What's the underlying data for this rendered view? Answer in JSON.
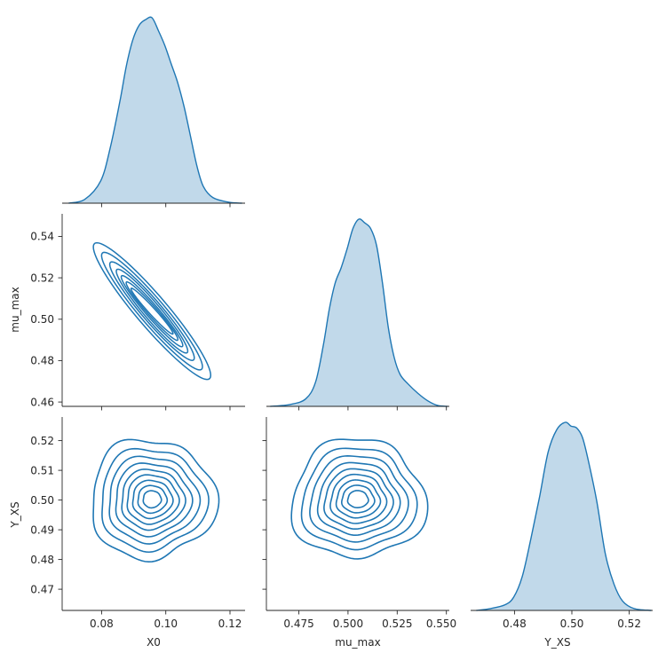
{
  "chart_data": {
    "type": "pairplot",
    "variables": [
      "X0",
      "mu_max",
      "Y_XS"
    ],
    "colors": {
      "line": "#1f77b4",
      "fill": "#1f77b4",
      "fill_alpha": 0.28,
      "axis": "#262626"
    },
    "axes": {
      "X0": {
        "label": "X0",
        "lim": [
          0.068,
          0.125
        ],
        "ticks": [
          0.08,
          0.1,
          0.12
        ],
        "tick_labels": [
          "0.08",
          "0.10",
          "0.12"
        ]
      },
      "mu_max": {
        "label": "mu_max",
        "lim": [
          0.458,
          0.551
        ],
        "ticks": [
          0.46,
          0.48,
          0.5,
          0.52,
          0.54
        ],
        "tick_labels": [
          "0.46",
          "0.48",
          "0.50",
          "0.52",
          "0.54"
        ],
        "x_ticks": [
          0.475,
          0.5,
          0.525,
          0.55
        ],
        "x_tick_labels": [
          "0.475",
          "0.500",
          "0.525",
          "0.550"
        ]
      },
      "Y_XS": {
        "label": "Y_XS",
        "lim": [
          0.463,
          0.5265
        ],
        "ticks": [
          0.47,
          0.48,
          0.49,
          0.5,
          0.51,
          0.52
        ],
        "tick_labels": [
          "0.47",
          "0.48",
          "0.49",
          "0.50",
          "0.51",
          "0.52"
        ],
        "x_ticks": [
          0.48,
          0.5,
          0.52
        ],
        "x_tick_labels": [
          "0.48",
          "0.50",
          "0.52"
        ]
      }
    },
    "diagonal_kde": [
      {
        "variable": "X0",
        "x": [
          0.07,
          0.075,
          0.08,
          0.083,
          0.086,
          0.088,
          0.09,
          0.092,
          0.094,
          0.096,
          0.098,
          0.1,
          0.102,
          0.104,
          0.106,
          0.108,
          0.11,
          0.112,
          0.115,
          0.12,
          0.124
        ],
        "density": [
          0.0,
          0.02,
          0.12,
          0.3,
          0.55,
          0.74,
          0.88,
          0.96,
          0.99,
          1.0,
          0.93,
          0.85,
          0.75,
          0.65,
          0.52,
          0.36,
          0.2,
          0.09,
          0.03,
          0.005,
          0.0
        ]
      },
      {
        "variable": "mu_max",
        "x": [
          0.46,
          0.47,
          0.478,
          0.483,
          0.487,
          0.49,
          0.493,
          0.496,
          0.499,
          0.502,
          0.505,
          0.508,
          0.511,
          0.514,
          0.517,
          0.52,
          0.523,
          0.526,
          0.53,
          0.535,
          0.54,
          0.545,
          0.55
        ],
        "density": [
          0.0,
          0.01,
          0.04,
          0.13,
          0.33,
          0.52,
          0.66,
          0.74,
          0.84,
          0.95,
          1.0,
          0.98,
          0.95,
          0.86,
          0.66,
          0.42,
          0.26,
          0.17,
          0.12,
          0.07,
          0.03,
          0.005,
          0.0
        ]
      },
      {
        "variable": "Y_XS",
        "x": [
          0.465,
          0.47,
          0.475,
          0.478,
          0.481,
          0.484,
          0.487,
          0.49,
          0.493,
          0.496,
          0.498,
          0.5,
          0.502,
          0.504,
          0.507,
          0.51,
          0.513,
          0.516,
          0.52,
          0.526
        ],
        "density": [
          0.0,
          0.01,
          0.03,
          0.07,
          0.18,
          0.38,
          0.6,
          0.84,
          0.96,
          1.0,
          0.98,
          0.97,
          0.92,
          0.8,
          0.58,
          0.3,
          0.14,
          0.05,
          0.01,
          0.0
        ]
      }
    ],
    "offdiagonal_kde_contours": [
      {
        "x": "X0",
        "y": "mu_max",
        "shape": "elongated ellipses",
        "center": [
          0.096,
          0.504
        ],
        "correlation": -0.99,
        "semi_axis_x": [
          0.018,
          0.0155,
          0.013,
          0.011,
          0.0095,
          0.008,
          0.0065
        ],
        "semi_axis_y": [
          0.0325,
          0.028,
          0.0235,
          0.02,
          0.017,
          0.014,
          0.011
        ],
        "minor_width": [
          0.0032,
          0.0026,
          0.0021,
          0.0017,
          0.0013,
          0.001,
          0.0007
        ]
      },
      {
        "x": "X0",
        "y": "Y_XS",
        "shape": "wobbly rings",
        "center": [
          0.096,
          0.4995
        ],
        "radius_x": [
          0.0195,
          0.0165,
          0.014,
          0.0118,
          0.0098,
          0.008,
          0.0062,
          0.0045,
          0.0028
        ],
        "radius_y": [
          0.0195,
          0.0165,
          0.014,
          0.0118,
          0.0098,
          0.008,
          0.0062,
          0.0045,
          0.0028
        ]
      },
      {
        "x": "mu_max",
        "y": "Y_XS",
        "shape": "wobbly rings",
        "center": [
          0.5045,
          0.4995
        ],
        "radius_x": [
          0.034,
          0.0288,
          0.0245,
          0.0205,
          0.0172,
          0.014,
          0.011,
          0.0082,
          0.0052
        ],
        "radius_y": [
          0.0195,
          0.0165,
          0.014,
          0.0118,
          0.0098,
          0.008,
          0.0062,
          0.0045,
          0.0028
        ]
      }
    ]
  }
}
